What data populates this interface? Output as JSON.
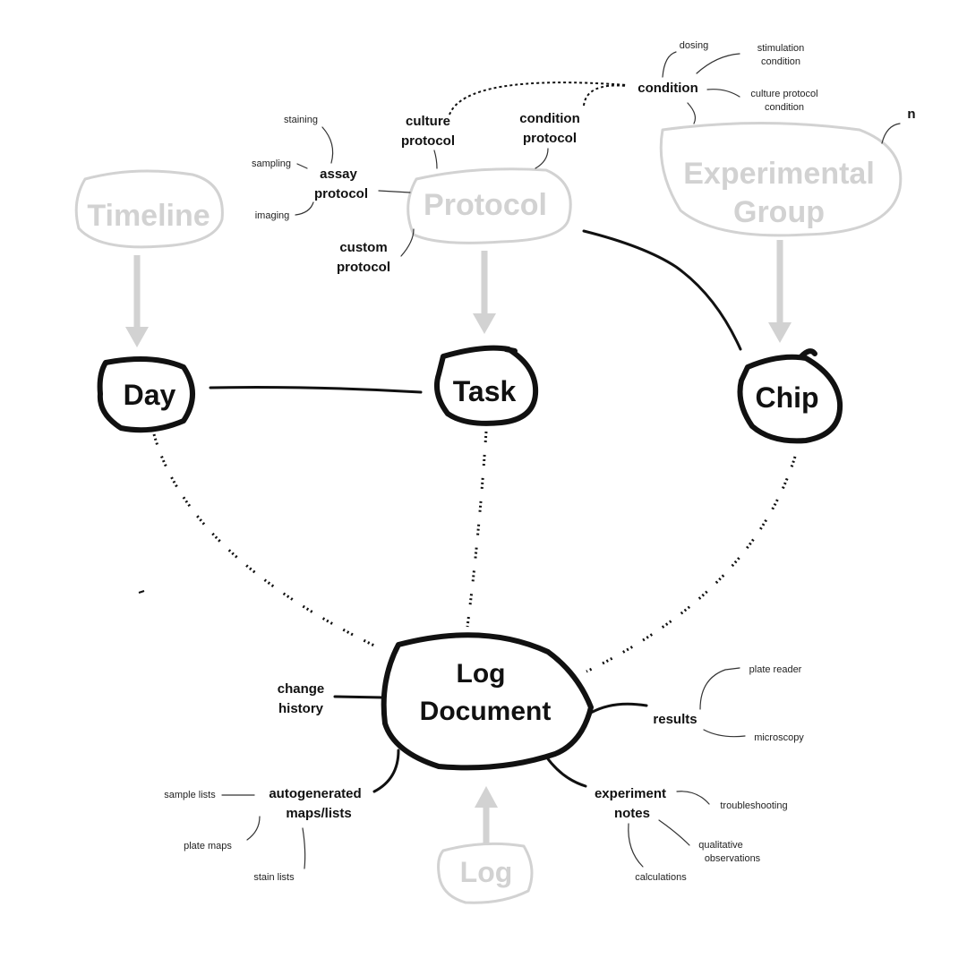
{
  "nodes": {
    "timeline": "Timeline",
    "protocol": "Protocol",
    "experimental_group": [
      "Experimental",
      "Group"
    ],
    "day": "Day",
    "task": "Task",
    "chip": "Chip",
    "log_document": [
      "Log",
      "Document"
    ],
    "log": "Log"
  },
  "labels": {
    "condition": "condition",
    "dosing": "dosing",
    "stimulation_condition": [
      "stimulation",
      "condition"
    ],
    "culture_protocol_condition": [
      "culture protocol",
      "condition"
    ],
    "n": "n",
    "culture_protocol": [
      "culture",
      "protocol"
    ],
    "condition_protocol": [
      "condition",
      "protocol"
    ],
    "staining": "staining",
    "sampling": "sampling",
    "imaging": "imaging",
    "assay_protocol": [
      "assay",
      "protocol"
    ],
    "custom_protocol": [
      "custom",
      "protocol"
    ],
    "change_history": [
      "change",
      "history"
    ],
    "results": "results",
    "plate_reader": "plate reader",
    "microscopy": "microscopy",
    "autogenerated": [
      "autogenerated",
      "maps/lists"
    ],
    "sample_lists": "sample lists",
    "plate_maps": "plate maps",
    "stain_lists": "stain lists",
    "experiment_notes": [
      "experiment",
      "notes"
    ],
    "troubleshooting": "troubleshooting",
    "qualitative_observations": [
      "qualitative",
      "observations"
    ],
    "calculations": "calculations"
  }
}
